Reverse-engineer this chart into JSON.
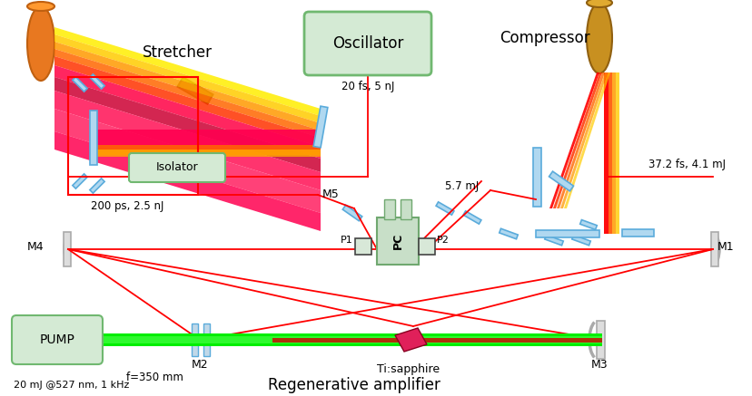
{
  "bg_color": "#ffffff",
  "stretcher_label": "Stretcher",
  "compressor_label": "Compressor",
  "oscillator_label": "Oscillator",
  "isolator_label": "Isolator",
  "pump_label": "PUMP",
  "regen_label": "Regenerative amplifier",
  "tisapphire_label": "Ti:sapphire",
  "text_20fs": "20 fs, 5 nJ",
  "text_200ps": "200 ps, 2.5 nJ",
  "text_372fs": "37.2 fs, 4.1 mJ",
  "text_57mJ": "5.7 mJ",
  "text_20mJ": "20 mJ @527 nm, 1 kHz",
  "text_f350": "f=350 mm",
  "mirror_color": "#b0d8f0",
  "mirror_edge": "#5aabdb",
  "grating_orange": "#e07818",
  "grating_gold": "#b8860b",
  "box_green_fill": "#d4ead4",
  "box_green_edge": "#70b870",
  "pump_green_bright": "#00ee00",
  "pump_green_light": "#44ff44",
  "red_beam": "#ff0000",
  "pink_crystal": "#e0205a",
  "pc_fill": "#c8dfc8",
  "pc_edge": "#70a870"
}
